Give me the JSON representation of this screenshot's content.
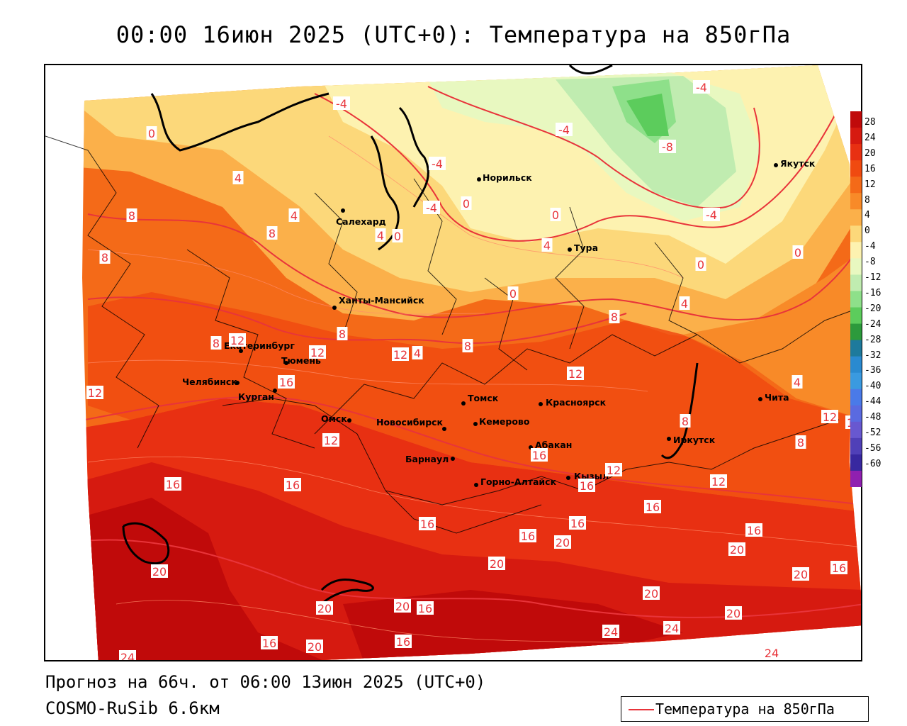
{
  "title": "00:00 16июн 2025 (UTC+0): Температура на 850гПа",
  "footer": {
    "forecast": "Прогноз на 66ч. от 06:00 13июн 2025 (UTC+0)",
    "model": "COSMO-RuSib 6.6км"
  },
  "legend": {
    "label": "Температура на 850гПа",
    "line_color": "#e8343a"
  },
  "colorbar": {
    "labels": [
      "28",
      "24",
      "20",
      "16",
      "12",
      "8",
      "4",
      "0",
      "-4",
      "-8",
      "-12",
      "-16",
      "-20",
      "-24",
      "-28",
      "-32",
      "-36",
      "-40",
      "-44",
      "-48",
      "-52",
      "-56",
      "-60"
    ],
    "colors": [
      "#c00a0a",
      "#d61a10",
      "#e83012",
      "#f04a10",
      "#f46a18",
      "#f88a28",
      "#fbb04a",
      "#fcd87a",
      "#fdf2b0",
      "#e8f8c0",
      "#c0ecb0",
      "#8ee08a",
      "#5ccc5c",
      "#2c9a3c",
      "#1e7a9c",
      "#2a8ad0",
      "#3a9ae0",
      "#4a7ae8",
      "#5a6ae0",
      "#6858d0",
      "#5040b8",
      "#3828a0",
      "#9020b0"
    ]
  },
  "cities": [
    {
      "name": "Салехард"
    },
    {
      "name": "Норильск"
    },
    {
      "name": "Якутск"
    },
    {
      "name": "Тура"
    },
    {
      "name": "Ханты-Мансийск"
    },
    {
      "name": "Екатеринбург"
    },
    {
      "name": "Тюмень"
    },
    {
      "name": "Челябинск"
    },
    {
      "name": "Курган"
    },
    {
      "name": "Омск"
    },
    {
      "name": "Новосибирск"
    },
    {
      "name": "Томск"
    },
    {
      "name": "Кемерово"
    },
    {
      "name": "Красноярск"
    },
    {
      "name": "Абакан"
    },
    {
      "name": "Барнаул"
    },
    {
      "name": "Горно-Алтайск"
    },
    {
      "name": "Кызыл"
    },
    {
      "name": "Иркутск"
    },
    {
      "name": "Чита"
    }
  ],
  "contour_labels": [
    "-4",
    "-4",
    "-4",
    "-4",
    "-8",
    "-4",
    "-4",
    "0",
    "0",
    "0",
    "0",
    "0",
    "0",
    "0",
    "4",
    "4",
    "4",
    "4",
    "4",
    "4",
    "4",
    "8",
    "8",
    "8",
    "8",
    "8",
    "8",
    "8",
    "8",
    "8",
    "12",
    "12",
    "12",
    "12",
    "12",
    "12",
    "12",
    "12",
    "12",
    "12",
    "16",
    "16",
    "16",
    "16",
    "16",
    "16",
    "16",
    "16",
    "16",
    "16",
    "16",
    "16",
    "16",
    "16",
    "20",
    "20",
    "20",
    "20",
    "20",
    "20",
    "20",
    "20",
    "20",
    "20",
    "24",
    "24",
    "24",
    "24"
  ]
}
